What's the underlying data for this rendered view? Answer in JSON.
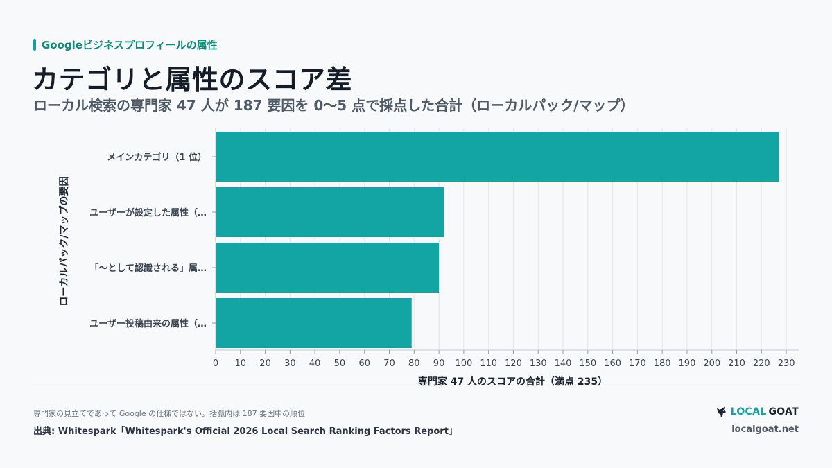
{
  "header": {
    "eyebrow": "Googleビジネスプロフィールの属性",
    "title": "カテゴリと属性のスコア差",
    "subtitle": "ローカル検索の専門家 47 人が 187 要因を 0〜5 点で採点した合計（ローカルパック/マップ）"
  },
  "chart_data": {
    "type": "bar",
    "orientation": "horizontal",
    "categories": [
      "メインカテゴリ（1 位）",
      "ユーザーが設定した属性（…",
      "「〜として認識される」属…",
      "ユーザー投稿由来の属性（…"
    ],
    "values": [
      227,
      92,
      90,
      79
    ],
    "xlabel": "専門家 47 人のスコアの合計（満点 235）",
    "ylabel": "ローカルパック/マップの要因",
    "xlim": [
      0,
      235
    ],
    "xticks": [
      0,
      10,
      20,
      30,
      40,
      50,
      60,
      70,
      80,
      90,
      100,
      110,
      120,
      130,
      140,
      150,
      160,
      170,
      180,
      190,
      200,
      210,
      220,
      230
    ],
    "grid": "vertical",
    "bar_color": "#12a5a4"
  },
  "footer": {
    "note": "専門家の見立てであって Google の仕様ではない。括弧内は 187 要因中の順位",
    "source": "出典: Whitespark「Whitespark's Official 2026 Local Search Ranking Factors Report」",
    "brand_local": "LOCAL",
    "brand_goat": "GOAT",
    "brand_icon": "goat-icon",
    "site": "localgoat.net"
  }
}
